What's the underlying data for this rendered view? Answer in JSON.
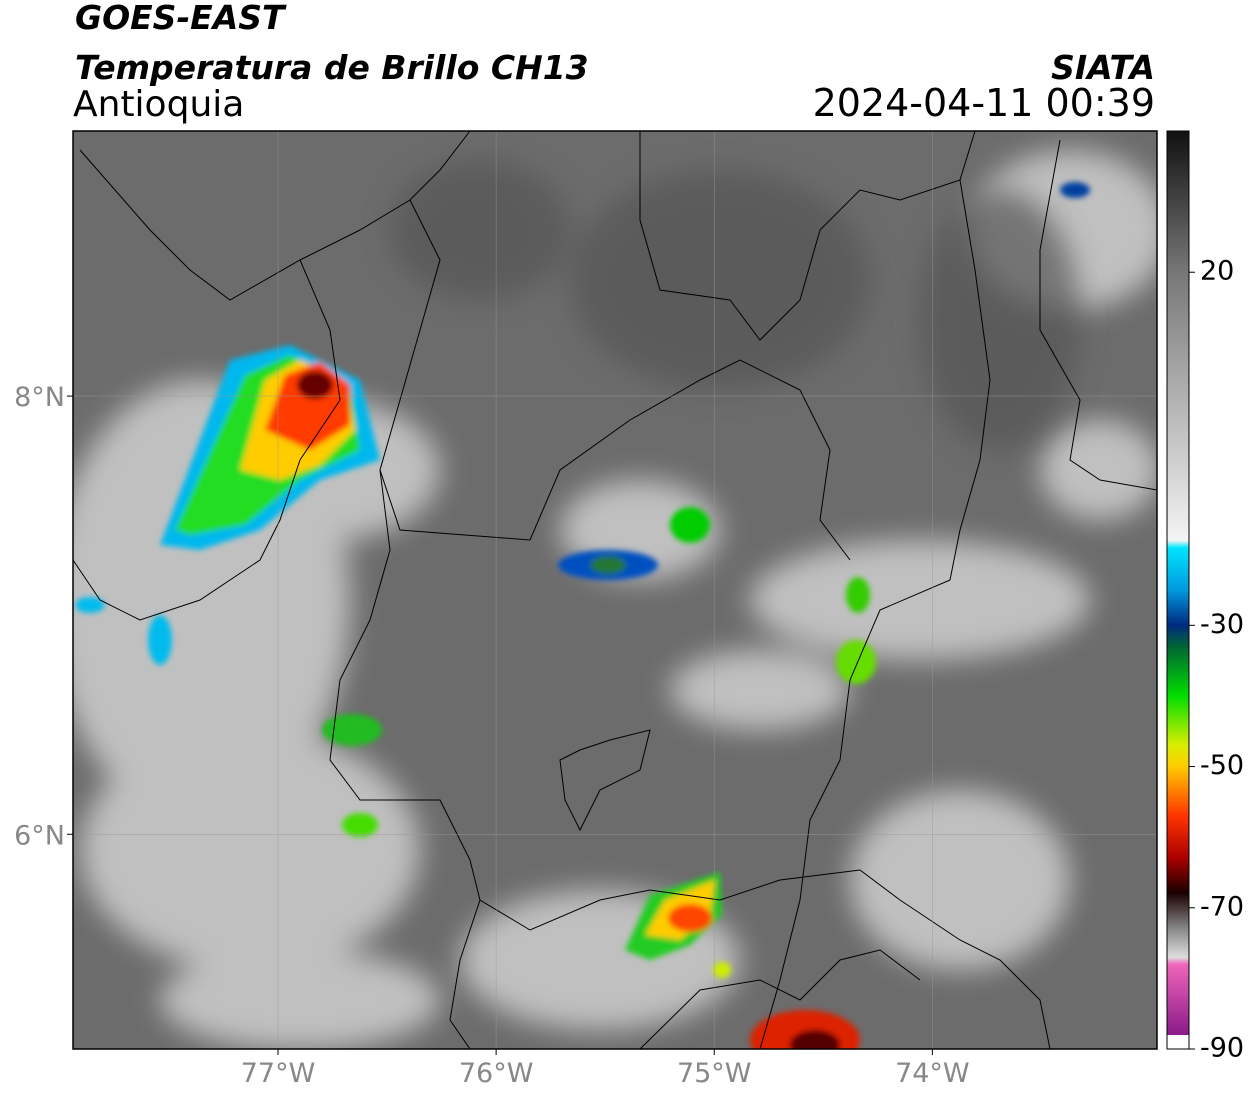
{
  "header": {
    "title": "GOES-EAST",
    "subtitle": "Temperatura de Brillo CH13",
    "region": "Antioquia",
    "source": "SIATA",
    "datetime": "2024-04-11 00:39"
  },
  "map": {
    "xlim": [
      -77.94,
      -72.97
    ],
    "ylim": [
      5.02,
      9.21
    ],
    "xticks": [
      {
        "value": -77,
        "label": "77°W"
      },
      {
        "value": -76,
        "label": "76°W"
      },
      {
        "value": -75,
        "label": "75°W"
      },
      {
        "value": -74,
        "label": "74°W"
      }
    ],
    "yticks": [
      {
        "value": 8,
        "label": "8°N"
      },
      {
        "value": 6,
        "label": "6°N"
      }
    ]
  },
  "colorbar": {
    "lim": [
      -90,
      40
    ],
    "ticks": [
      20,
      -30,
      -50,
      -70,
      -90
    ]
  }
}
